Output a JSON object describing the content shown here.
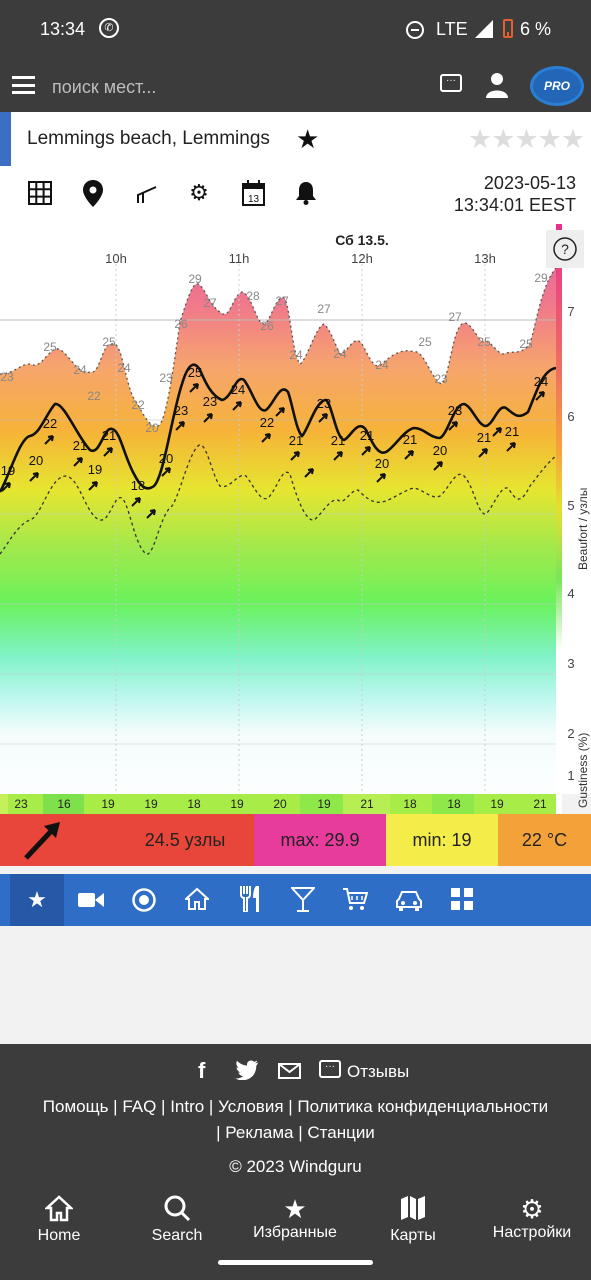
{
  "status_bar": {
    "time": "13:34",
    "network": "LTE",
    "battery": "6 %"
  },
  "search": {
    "placeholder": "поиск мест..."
  },
  "pro_badge": "PRO",
  "spot": {
    "title": "Lemmings beach, Lemmings"
  },
  "forecast_time": {
    "date": "2023-05-13",
    "time": "13:34:01 EEST"
  },
  "chart": {
    "day_label": "Сб 13.5.",
    "hours": [
      "10h",
      "11h",
      "12h",
      "13h"
    ],
    "right_axis_label": "Beaufort / узлы",
    "gust_axis_label": "Gustiness (%)",
    "beaufort_ticks": [
      "7",
      "6",
      "5",
      "4",
      "3",
      "2",
      "1"
    ],
    "help": "?",
    "gust_labels": [
      "23",
      "25",
      "24",
      "22",
      "25",
      "24",
      "22",
      "20",
      "23",
      "26",
      "29",
      "27",
      "28",
      "26",
      "27",
      "24",
      "27",
      "24",
      "24",
      "25",
      "23",
      "27",
      "25",
      "25",
      "29"
    ],
    "wind_labels": [
      "19",
      "20",
      "22",
      "21",
      "19",
      "21",
      "18",
      "20",
      "23",
      "25",
      "23",
      "24",
      "22",
      "21",
      "23",
      "21",
      "21",
      "20",
      "21",
      "20",
      "23",
      "21",
      "21",
      "24"
    ],
    "gustiness": [
      "23",
      "16",
      "19",
      "19",
      "18",
      "19",
      "20",
      "19",
      "21",
      "18",
      "18",
      "19",
      "21"
    ]
  },
  "summary": {
    "speed": "24.5 узлы",
    "max": "max: 29.9",
    "min": "min: 19",
    "temp": "22 °C"
  },
  "footer": {
    "feedback": "Отзывы",
    "links_line1": "Помощь | FAQ | Intro | Условия | Политика конфиденциальности",
    "links_line2": "| Реклама | Станции",
    "copyright": "© 2023 Windguru"
  },
  "nav": {
    "home": "Home",
    "search": "Search",
    "favorites": "Избранные",
    "maps": "Карты",
    "settings": "Настройки"
  },
  "colors": {
    "bar_dark": "#3c3c3c",
    "spot_accent": "#3a6fc4",
    "category_bar": "#2f6ec7",
    "summary_red": "#e8463a",
    "summary_pink": "#e83c9c",
    "summary_yellow": "#f4ec48",
    "summary_orange": "#f3a23a"
  }
}
